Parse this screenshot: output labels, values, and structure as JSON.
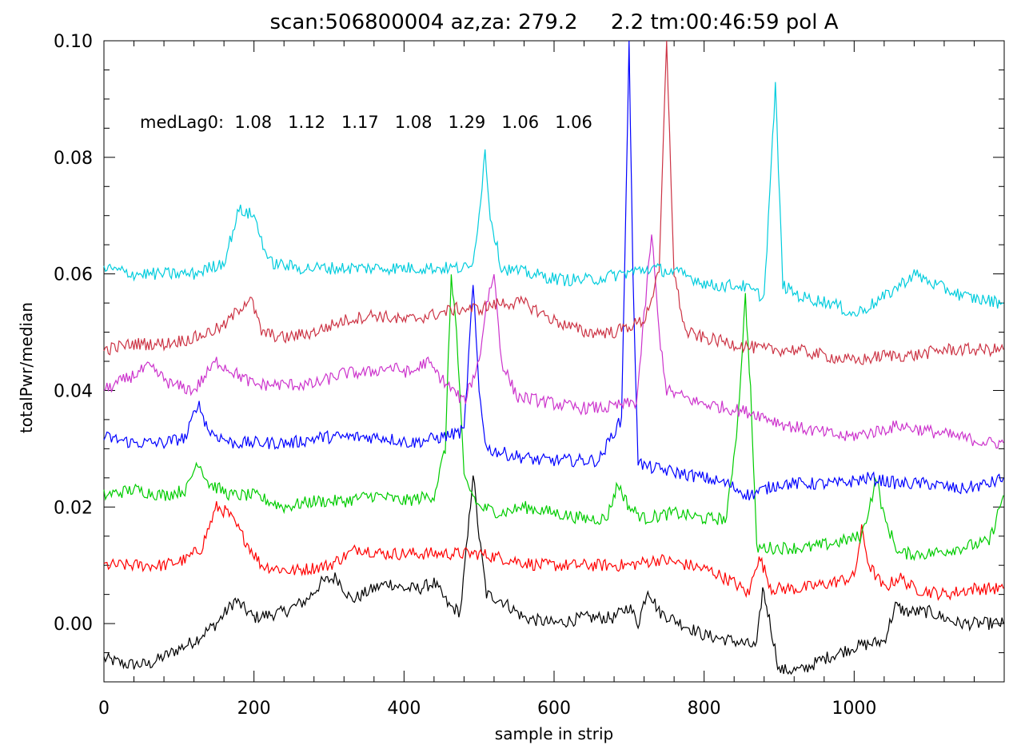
{
  "chart_data": {
    "type": "line",
    "title": "scan:506800004 az,za: 279.2     2.2 tm:00:46:59 pol A",
    "xlabel": "sample in strip",
    "ylabel": "totalPwr/median",
    "xlim": [
      0,
      1200
    ],
    "ylim": [
      -0.01,
      0.1
    ],
    "grid": false,
    "x_ticks": [
      "0",
      "200",
      "400",
      "600",
      "800",
      "1000"
    ],
    "y_ticks": [
      "0.00",
      "0.02",
      "0.04",
      "0.06",
      "0.08",
      "0.10"
    ],
    "annotation": "medLag0:  1.08   1.12   1.17   1.08   1.29   1.06   1.06",
    "series": [
      {
        "color": "#000000",
        "points": [
          [
            0,
            -0.006
          ],
          [
            30,
            -0.007
          ],
          [
            60,
            -0.007
          ],
          [
            90,
            -0.005
          ],
          [
            120,
            -0.003
          ],
          [
            150,
            0.0
          ],
          [
            175,
            0.004
          ],
          [
            200,
            0.001
          ],
          [
            240,
            0.002
          ],
          [
            270,
            0.004
          ],
          [
            290,
            0.007
          ],
          [
            310,
            0.008
          ],
          [
            330,
            0.004
          ],
          [
            360,
            0.006
          ],
          [
            380,
            0.007
          ],
          [
            400,
            0.006
          ],
          [
            420,
            0.006
          ],
          [
            440,
            0.007
          ],
          [
            460,
            0.003
          ],
          [
            475,
            0.002
          ],
          [
            485,
            0.015
          ],
          [
            492,
            0.026
          ],
          [
            500,
            0.015
          ],
          [
            510,
            0.005
          ],
          [
            530,
            0.004
          ],
          [
            560,
            0.001
          ],
          [
            600,
            0.0
          ],
          [
            640,
            0.001
          ],
          [
            680,
            0.001
          ],
          [
            700,
            0.003
          ],
          [
            712,
            0.0
          ],
          [
            725,
            0.006
          ],
          [
            740,
            0.002
          ],
          [
            770,
            0.0
          ],
          [
            800,
            -0.002
          ],
          [
            840,
            -0.003
          ],
          [
            870,
            -0.004
          ],
          [
            878,
            0.006
          ],
          [
            885,
            0.002
          ],
          [
            900,
            -0.008
          ],
          [
            930,
            -0.008
          ],
          [
            960,
            -0.006
          ],
          [
            1000,
            -0.004
          ],
          [
            1040,
            -0.003
          ],
          [
            1055,
            0.003
          ],
          [
            1070,
            0.002
          ],
          [
            1100,
            0.002
          ],
          [
            1140,
            0.0
          ],
          [
            1170,
            0.0
          ],
          [
            1199,
            0.0
          ]
        ]
      },
      {
        "color": "#ff0000",
        "points": [
          [
            0,
            0.01
          ],
          [
            40,
            0.01
          ],
          [
            80,
            0.01
          ],
          [
            110,
            0.011
          ],
          [
            130,
            0.013
          ],
          [
            150,
            0.02
          ],
          [
            165,
            0.019
          ],
          [
            185,
            0.015
          ],
          [
            210,
            0.01
          ],
          [
            250,
            0.009
          ],
          [
            300,
            0.01
          ],
          [
            340,
            0.013
          ],
          [
            370,
            0.012
          ],
          [
            400,
            0.012
          ],
          [
            440,
            0.012
          ],
          [
            470,
            0.012
          ],
          [
            500,
            0.012
          ],
          [
            540,
            0.011
          ],
          [
            580,
            0.01
          ],
          [
            620,
            0.01
          ],
          [
            660,
            0.01
          ],
          [
            700,
            0.01
          ],
          [
            740,
            0.011
          ],
          [
            780,
            0.01
          ],
          [
            810,
            0.009
          ],
          [
            840,
            0.007
          ],
          [
            860,
            0.005
          ],
          [
            868,
            0.01
          ],
          [
            875,
            0.011
          ],
          [
            890,
            0.006
          ],
          [
            930,
            0.006
          ],
          [
            970,
            0.007
          ],
          [
            1000,
            0.008
          ],
          [
            1010,
            0.016
          ],
          [
            1020,
            0.01
          ],
          [
            1040,
            0.006
          ],
          [
            1060,
            0.008
          ],
          [
            1080,
            0.006
          ],
          [
            1120,
            0.005
          ],
          [
            1160,
            0.006
          ],
          [
            1199,
            0.006
          ]
        ]
      },
      {
        "color": "#00cc00",
        "points": [
          [
            0,
            0.022
          ],
          [
            40,
            0.023
          ],
          [
            80,
            0.022
          ],
          [
            110,
            0.023
          ],
          [
            125,
            0.028
          ],
          [
            140,
            0.024
          ],
          [
            170,
            0.022
          ],
          [
            200,
            0.022
          ],
          [
            240,
            0.02
          ],
          [
            280,
            0.021
          ],
          [
            320,
            0.021
          ],
          [
            360,
            0.022
          ],
          [
            400,
            0.021
          ],
          [
            440,
            0.022
          ],
          [
            455,
            0.03
          ],
          [
            463,
            0.06
          ],
          [
            470,
            0.05
          ],
          [
            480,
            0.025
          ],
          [
            500,
            0.02
          ],
          [
            530,
            0.019
          ],
          [
            560,
            0.02
          ],
          [
            600,
            0.019
          ],
          [
            640,
            0.018
          ],
          [
            670,
            0.018
          ],
          [
            685,
            0.024
          ],
          [
            700,
            0.02
          ],
          [
            720,
            0.018
          ],
          [
            760,
            0.019
          ],
          [
            800,
            0.018
          ],
          [
            830,
            0.018
          ],
          [
            845,
            0.035
          ],
          [
            855,
            0.056
          ],
          [
            862,
            0.04
          ],
          [
            870,
            0.013
          ],
          [
            900,
            0.013
          ],
          [
            940,
            0.013
          ],
          [
            980,
            0.014
          ],
          [
            1010,
            0.015
          ],
          [
            1030,
            0.025
          ],
          [
            1040,
            0.018
          ],
          [
            1060,
            0.012
          ],
          [
            1100,
            0.012
          ],
          [
            1140,
            0.013
          ],
          [
            1180,
            0.014
          ],
          [
            1199,
            0.022
          ]
        ]
      },
      {
        "color": "#0000ff",
        "points": [
          [
            0,
            0.032
          ],
          [
            40,
            0.031
          ],
          [
            80,
            0.031
          ],
          [
            110,
            0.032
          ],
          [
            125,
            0.038
          ],
          [
            140,
            0.033
          ],
          [
            170,
            0.031
          ],
          [
            210,
            0.031
          ],
          [
            250,
            0.031
          ],
          [
            290,
            0.032
          ],
          [
            330,
            0.032
          ],
          [
            370,
            0.032
          ],
          [
            410,
            0.031
          ],
          [
            450,
            0.032
          ],
          [
            480,
            0.033
          ],
          [
            492,
            0.058
          ],
          [
            500,
            0.04
          ],
          [
            510,
            0.03
          ],
          [
            540,
            0.029
          ],
          [
            580,
            0.028
          ],
          [
            620,
            0.028
          ],
          [
            660,
            0.028
          ],
          [
            680,
            0.033
          ],
          [
            690,
            0.035
          ],
          [
            700,
            0.1
          ],
          [
            705,
            0.06
          ],
          [
            712,
            0.028
          ],
          [
            720,
            0.027
          ],
          [
            760,
            0.026
          ],
          [
            800,
            0.025
          ],
          [
            830,
            0.024
          ],
          [
            860,
            0.022
          ],
          [
            900,
            0.024
          ],
          [
            940,
            0.024
          ],
          [
            980,
            0.024
          ],
          [
            1020,
            0.025
          ],
          [
            1060,
            0.024
          ],
          [
            1100,
            0.024
          ],
          [
            1140,
            0.023
          ],
          [
            1180,
            0.024
          ],
          [
            1199,
            0.025
          ]
        ]
      },
      {
        "color": "#cc33cc",
        "points": [
          [
            0,
            0.04
          ],
          [
            30,
            0.042
          ],
          [
            60,
            0.044
          ],
          [
            90,
            0.041
          ],
          [
            120,
            0.04
          ],
          [
            150,
            0.045
          ],
          [
            175,
            0.043
          ],
          [
            200,
            0.041
          ],
          [
            240,
            0.041
          ],
          [
            280,
            0.041
          ],
          [
            320,
            0.043
          ],
          [
            350,
            0.043
          ],
          [
            380,
            0.044
          ],
          [
            410,
            0.043
          ],
          [
            430,
            0.045
          ],
          [
            450,
            0.042
          ],
          [
            480,
            0.038
          ],
          [
            500,
            0.045
          ],
          [
            510,
            0.055
          ],
          [
            520,
            0.06
          ],
          [
            530,
            0.045
          ],
          [
            550,
            0.039
          ],
          [
            590,
            0.038
          ],
          [
            630,
            0.037
          ],
          [
            670,
            0.037
          ],
          [
            710,
            0.038
          ],
          [
            730,
            0.067
          ],
          [
            740,
            0.05
          ],
          [
            750,
            0.04
          ],
          [
            790,
            0.038
          ],
          [
            830,
            0.037
          ],
          [
            870,
            0.036
          ],
          [
            910,
            0.034
          ],
          [
            950,
            0.033
          ],
          [
            990,
            0.032
          ],
          [
            1030,
            0.033
          ],
          [
            1060,
            0.034
          ],
          [
            1100,
            0.033
          ],
          [
            1140,
            0.032
          ],
          [
            1180,
            0.031
          ],
          [
            1199,
            0.031
          ]
        ]
      },
      {
        "color": "#cc3344",
        "points": [
          [
            0,
            0.047
          ],
          [
            40,
            0.048
          ],
          [
            80,
            0.048
          ],
          [
            120,
            0.049
          ],
          [
            160,
            0.051
          ],
          [
            180,
            0.054
          ],
          [
            195,
            0.056
          ],
          [
            210,
            0.05
          ],
          [
            240,
            0.049
          ],
          [
            280,
            0.05
          ],
          [
            320,
            0.052
          ],
          [
            360,
            0.053
          ],
          [
            400,
            0.052
          ],
          [
            440,
            0.053
          ],
          [
            470,
            0.054
          ],
          [
            500,
            0.054
          ],
          [
            530,
            0.055
          ],
          [
            560,
            0.055
          ],
          [
            600,
            0.052
          ],
          [
            640,
            0.05
          ],
          [
            680,
            0.05
          ],
          [
            720,
            0.052
          ],
          [
            740,
            0.06
          ],
          [
            750,
            0.1
          ],
          [
            760,
            0.06
          ],
          [
            775,
            0.05
          ],
          [
            800,
            0.049
          ],
          [
            840,
            0.048
          ],
          [
            880,
            0.047
          ],
          [
            920,
            0.047
          ],
          [
            960,
            0.046
          ],
          [
            1000,
            0.045
          ],
          [
            1040,
            0.046
          ],
          [
            1080,
            0.046
          ],
          [
            1120,
            0.047
          ],
          [
            1160,
            0.047
          ],
          [
            1199,
            0.047
          ]
        ]
      },
      {
        "color": "#00ccdd",
        "points": [
          [
            0,
            0.061
          ],
          [
            40,
            0.06
          ],
          [
            80,
            0.06
          ],
          [
            120,
            0.06
          ],
          [
            160,
            0.062
          ],
          [
            180,
            0.071
          ],
          [
            200,
            0.07
          ],
          [
            220,
            0.062
          ],
          [
            260,
            0.061
          ],
          [
            300,
            0.061
          ],
          [
            340,
            0.061
          ],
          [
            380,
            0.061
          ],
          [
            420,
            0.061
          ],
          [
            460,
            0.061
          ],
          [
            490,
            0.061
          ],
          [
            500,
            0.07
          ],
          [
            508,
            0.081
          ],
          [
            515,
            0.07
          ],
          [
            530,
            0.061
          ],
          [
            570,
            0.06
          ],
          [
            610,
            0.059
          ],
          [
            650,
            0.059
          ],
          [
            690,
            0.06
          ],
          [
            730,
            0.061
          ],
          [
            770,
            0.06
          ],
          [
            810,
            0.058
          ],
          [
            850,
            0.058
          ],
          [
            880,
            0.056
          ],
          [
            895,
            0.092
          ],
          [
            905,
            0.058
          ],
          [
            930,
            0.056
          ],
          [
            970,
            0.055
          ],
          [
            1000,
            0.053
          ],
          [
            1040,
            0.056
          ],
          [
            1060,
            0.058
          ],
          [
            1080,
            0.06
          ],
          [
            1110,
            0.058
          ],
          [
            1150,
            0.056
          ],
          [
            1199,
            0.055
          ]
        ]
      }
    ]
  }
}
